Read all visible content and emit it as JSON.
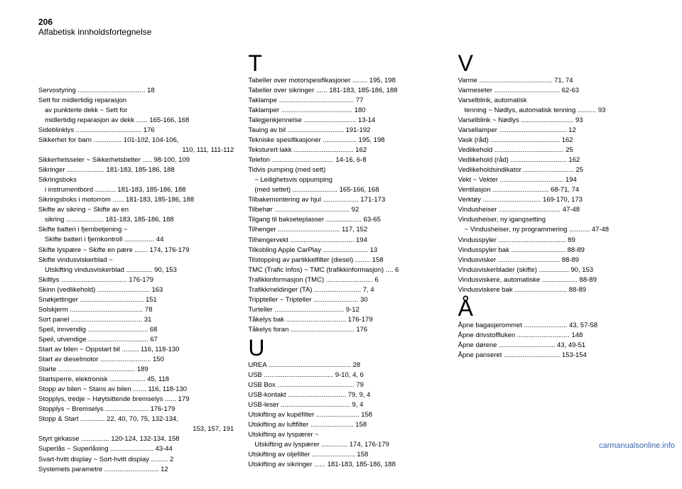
{
  "page_number": "206",
  "page_title": "Alfabetisk innholdsfortegnelse",
  "watermark": "carmanualsonline.info",
  "columns": [
    {
      "sections": [
        {
          "letter": null,
          "entries": [
            {
              "label": "Servostyring",
              "pages": "18",
              "indent": false
            },
            {
              "label": "Sett for midlertidig reparasjon",
              "pages": "",
              "indent": false
            },
            {
              "label": "av punkterte dekk ~ Sett for",
              "pages": "",
              "indent": true
            },
            {
              "label": "midlertidig reparasjon av dekk",
              "pages": "165-166, 168",
              "indent": true
            },
            {
              "label": "Sideblinklys",
              "pages": "176",
              "indent": false
            },
            {
              "label": "Sikkerhet for barn",
              "pages": "101-102, 104-106,",
              "indent": false
            },
            {
              "label": "",
              "pages": "110, 111, 111-112",
              "indent": false,
              "ralign": true
            },
            {
              "label": "Sikkerhetsseler ~ Sikkerhetsbelter",
              "pages": "98-100, 109",
              "indent": false
            },
            {
              "label": "Sikringer",
              "pages": "181-183, 185-186, 188",
              "indent": false
            },
            {
              "label": "Sikringsboks",
              "pages": "",
              "indent": false
            },
            {
              "label": "i instrumentbord",
              "pages": "181-183, 185-186, 188",
              "indent": true
            },
            {
              "label": "Sikringsboks i motorrom",
              "pages": "181-183, 185-186, 188",
              "indent": false
            },
            {
              "label": "Skifte av sikring ~ Skifte av en",
              "pages": "",
              "indent": false
            },
            {
              "label": "sikring",
              "pages": "181-183, 185-186, 188",
              "indent": true
            },
            {
              "label": "Skifte batteri i fjernbetjening ~",
              "pages": "",
              "indent": false
            },
            {
              "label": "Skifte batteri i fjernkontroll",
              "pages": "44",
              "indent": true
            },
            {
              "label": "Skifte lyspære ~ Skifte en pære",
              "pages": "174, 176-179",
              "indent": false
            },
            {
              "label": "Skifte vindusviskerblad ~",
              "pages": "",
              "indent": false
            },
            {
              "label": "Utskifting vindusviskerblad",
              "pages": "90, 153",
              "indent": true
            },
            {
              "label": "Skiltlys",
              "pages": "176-179",
              "indent": false
            },
            {
              "label": "Skinn (vedlikehold)",
              "pages": "163",
              "indent": false
            },
            {
              "label": "Snøkjettinger",
              "pages": "151",
              "indent": false
            },
            {
              "label": "Solskjerm",
              "pages": "78",
              "indent": false
            },
            {
              "label": "Sort panel",
              "pages": "31",
              "indent": false
            },
            {
              "label": "Speil, innvendig",
              "pages": "68",
              "indent": false
            },
            {
              "label": "Speil, utvendige",
              "pages": "67",
              "indent": false
            },
            {
              "label": "Start av bilen ~ Oppstart bil",
              "pages": "116, 118-130",
              "indent": false
            },
            {
              "label": "Start av dieselmotor",
              "pages": "150",
              "indent": false
            },
            {
              "label": "Starte",
              "pages": "189",
              "indent": false
            },
            {
              "label": "Startsperre, elektronisk",
              "pages": "45, 118",
              "indent": false
            },
            {
              "label": "Stopp av bilen ~ Stans av bilen",
              "pages": "116, 118-130",
              "indent": false
            },
            {
              "label": "Stopplys, tredje ~ Høytsittende bremselys",
              "pages": "179",
              "indent": false
            },
            {
              "label": "Stopplys ~ Bremselys",
              "pages": "176-179",
              "indent": false
            },
            {
              "label": "Stopp & Start",
              "pages": "22, 40, 70, 75, 132-134,",
              "indent": false
            },
            {
              "label": "",
              "pages": "153, 157, 191",
              "indent": false,
              "ralign": true
            },
            {
              "label": "Styrt girkasse",
              "pages": "120-124, 132-134, 158",
              "indent": false
            },
            {
              "label": "Superlås ~ Superlåsing",
              "pages": "43-44",
              "indent": false
            },
            {
              "label": "Svart-hvitt display ~ Sort-hvitt display",
              "pages": "2",
              "indent": false
            },
            {
              "label": "Systemets parametre",
              "pages": "12",
              "indent": false
            }
          ]
        }
      ]
    },
    {
      "sections": [
        {
          "letter": "T",
          "entries": [
            {
              "label": "Tabeller over motorspesifikasjoner",
              "pages": "195, 198",
              "indent": false
            },
            {
              "label": "Tabeller over sikringer",
              "pages": "181-183, 185-186, 188",
              "indent": false
            },
            {
              "label": "Taklampe",
              "pages": "77",
              "indent": false
            },
            {
              "label": "Taklamper",
              "pages": "180",
              "indent": false
            },
            {
              "label": "Talegjenkjennelse",
              "pages": "13-14",
              "indent": false
            },
            {
              "label": "Tauing av bil",
              "pages": "191-192",
              "indent": false
            },
            {
              "label": "Tekniske spesifikasjoner",
              "pages": "195, 198",
              "indent": false
            },
            {
              "label": "Teksturert lakk",
              "pages": "162",
              "indent": false
            },
            {
              "label": "Telefon",
              "pages": "14-16, 6-8",
              "indent": false
            },
            {
              "label": "Tidvis pumping (med sett)",
              "pages": "",
              "indent": false
            },
            {
              "label": "~ Leilighetsvis oppumping",
              "pages": "",
              "indent": true
            },
            {
              "label": "(med settet)",
              "pages": "165-166, 168",
              "indent": true
            },
            {
              "label": "Tilbakemontering av hjul",
              "pages": "171-173",
              "indent": false
            },
            {
              "label": "Tilbehør",
              "pages": "92",
              "indent": false
            },
            {
              "label": "Tilgang til bakseteplasser",
              "pages": "63-65",
              "indent": false
            },
            {
              "label": "Tilhenger",
              "pages": "117, 152",
              "indent": false
            },
            {
              "label": "Tilhengervekt",
              "pages": "194",
              "indent": false
            },
            {
              "label": "Tilkobling Apple CarPlay",
              "pages": "13",
              "indent": false
            },
            {
              "label": "Tilstopping av partikkelfilter (diesel)",
              "pages": "158",
              "indent": false
            },
            {
              "label": "TMC (Trafic Infos) ~ TMC (trafikkinformasjon)",
              "pages": "6",
              "indent": false
            },
            {
              "label": "Trafikkinformasjon (TMC)",
              "pages": "6",
              "indent": false
            },
            {
              "label": "Trafikkmeldinger (TA)",
              "pages": "7, 4",
              "indent": false
            },
            {
              "label": "Trippteller ~ Tripteller",
              "pages": "30",
              "indent": false
            },
            {
              "label": "Turteller",
              "pages": "9-12",
              "indent": false
            },
            {
              "label": "Tåkelys bak",
              "pages": "176-179",
              "indent": false
            },
            {
              "label": "Tåkelys foran",
              "pages": "176",
              "indent": false
            }
          ]
        },
        {
          "letter": "U",
          "entries": [
            {
              "label": "UREA",
              "pages": "28",
              "indent": false
            },
            {
              "label": "USB",
              "pages": "9-10, 4, 6",
              "indent": false
            },
            {
              "label": "USB Box",
              "pages": "79",
              "indent": false
            },
            {
              "label": "USB-kontakt",
              "pages": "79, 9, 4",
              "indent": false
            },
            {
              "label": "USB-leser",
              "pages": "9, 4",
              "indent": false
            },
            {
              "label": "Utskifting av kupéfilter",
              "pages": "158",
              "indent": false
            },
            {
              "label": "Utskifting av luftfilter",
              "pages": "158",
              "indent": false
            },
            {
              "label": "Utskifting av lyspærer ~",
              "pages": "",
              "indent": false
            },
            {
              "label": "Utskifting av lyspærer",
              "pages": "174, 176-179",
              "indent": true
            },
            {
              "label": "Utskifting av oljefilter",
              "pages": "158",
              "indent": false
            },
            {
              "label": "Utskifting av sikringer",
              "pages": "181-183, 185-186, 188",
              "indent": false
            }
          ]
        }
      ]
    },
    {
      "sections": [
        {
          "letter": "V",
          "entries": [
            {
              "label": "Varme",
              "pages": "71, 74",
              "indent": false
            },
            {
              "label": "Varmeseter",
              "pages": "62-63",
              "indent": false
            },
            {
              "label": "Varselblink, automatisk",
              "pages": "",
              "indent": false
            },
            {
              "label": "tenning ~ Nødlys, automatisk tenning",
              "pages": "93",
              "indent": true
            },
            {
              "label": "Varselblink ~ Nødlys",
              "pages": "93",
              "indent": false
            },
            {
              "label": "Varsellamper",
              "pages": "12",
              "indent": false
            },
            {
              "label": "Vask (råd)",
              "pages": "162",
              "indent": false
            },
            {
              "label": "Vedlikehold",
              "pages": "25",
              "indent": false
            },
            {
              "label": "Vedlikehold (råd)",
              "pages": "162",
              "indent": false
            },
            {
              "label": "Vedlikeholdsindikator",
              "pages": "25",
              "indent": false
            },
            {
              "label": "Vekt ~ Vekter",
              "pages": "194",
              "indent": false
            },
            {
              "label": "Ventilasjon",
              "pages": "68-71, 74",
              "indent": false
            },
            {
              "label": "Verktøy",
              "pages": "169-170, 173",
              "indent": false
            },
            {
              "label": "Vindusheiser",
              "pages": "47-48",
              "indent": false
            },
            {
              "label": "Vindusheiser, ny igangsetting",
              "pages": "",
              "indent": false
            },
            {
              "label": "~ Vindusheiser, ny programmering",
              "pages": "47-48",
              "indent": true
            },
            {
              "label": "Vindusspyler",
              "pages": "89",
              "indent": false
            },
            {
              "label": "Vindusspyler bak",
              "pages": "88-89",
              "indent": false
            },
            {
              "label": "Vindusvisker",
              "pages": "88-89",
              "indent": false
            },
            {
              "label": "Vindusviskerblader (skifte)",
              "pages": "90, 153",
              "indent": false
            },
            {
              "label": "Vindusviskere, automatiske",
              "pages": "88-89",
              "indent": false
            },
            {
              "label": "Vindusviskere bak",
              "pages": "88-89",
              "indent": false
            }
          ]
        },
        {
          "letter": "Å",
          "entries": [
            {
              "label": "Åpne bagasjerommet",
              "pages": "43, 57-58",
              "indent": false
            },
            {
              "label": "Åpne drivstoffluken",
              "pages": "148",
              "indent": false
            },
            {
              "label": "Åpne dørene",
              "pages": "43, 49-51",
              "indent": false
            },
            {
              "label": "Åpne panseret",
              "pages": "153-154",
              "indent": false
            }
          ]
        }
      ]
    }
  ]
}
